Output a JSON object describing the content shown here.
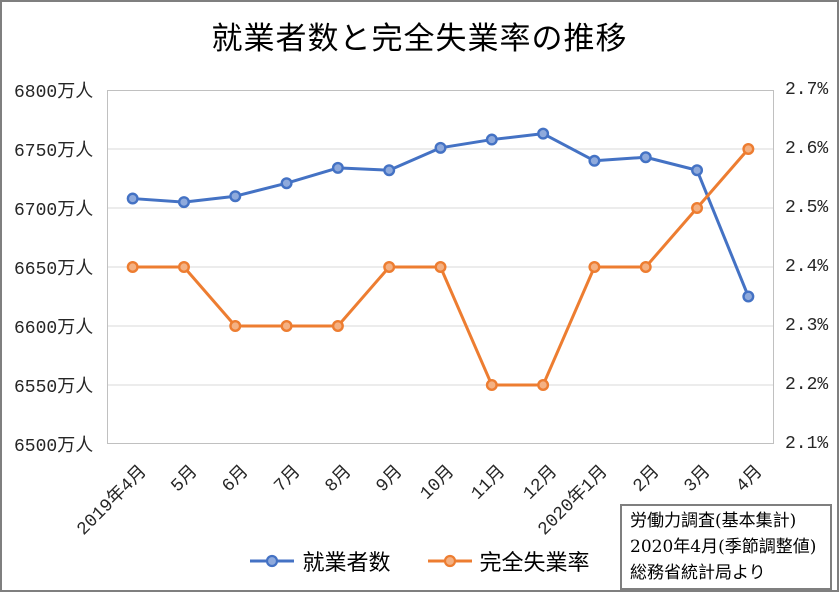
{
  "chart_data": {
    "type": "line",
    "title": "就業者数と完全失業率の推移",
    "categories": [
      "2019年4月",
      "5月",
      "6月",
      "7月",
      "8月",
      "9月",
      "10月",
      "11月",
      "12月",
      "2020年1月",
      "2月",
      "3月",
      "4月"
    ],
    "series": [
      {
        "name": "就業者数",
        "axis": "left",
        "unit": "万人",
        "color": "#4472C4",
        "marker_fill": "#8FAADC",
        "values": [
          6708,
          6705,
          6710,
          6721,
          6734,
          6732,
          6751,
          6758,
          6763,
          6740,
          6743,
          6732,
          6625
        ]
      },
      {
        "name": "完全失業率",
        "axis": "right",
        "unit": "%",
        "color": "#ED7D31",
        "marker_fill": "#F4B183",
        "values": [
          2.4,
          2.4,
          2.3,
          2.3,
          2.3,
          2.4,
          2.4,
          2.2,
          2.2,
          2.4,
          2.4,
          2.5,
          2.6
        ]
      }
    ],
    "left_axis": {
      "min": 6500,
      "max": 6800,
      "tick_step": 50,
      "tick_labels": [
        "6800万人",
        "6750万人",
        "6700万人",
        "6650万人",
        "6600万人",
        "6550万人",
        "6500万人"
      ]
    },
    "right_axis": {
      "min": 2.1,
      "max": 2.7,
      "tick_step": 0.1,
      "tick_labels": [
        "2.7%",
        "2.6%",
        "2.5%",
        "2.4%",
        "2.3%",
        "2.2%",
        "2.1%"
      ]
    },
    "grid": "horizontal",
    "legend_position": "bottom",
    "gridline_color": "#D9D9D9",
    "plot_border_color": "#C0C0C0"
  },
  "annotation": {
    "lines": [
      "労働力調査(基本集計)",
      "2020年4月(季節調整値)",
      "総務省統計局より"
    ]
  }
}
